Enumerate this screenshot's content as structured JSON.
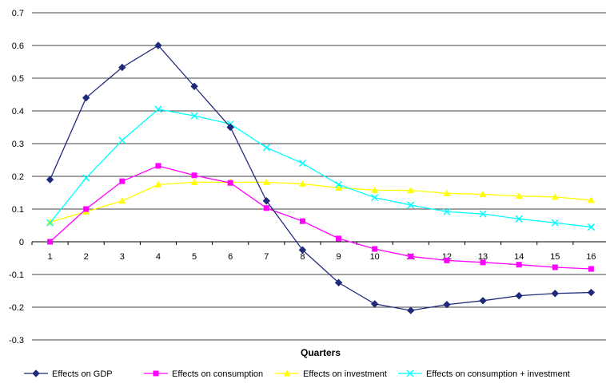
{
  "chart_data": {
    "type": "line",
    "title": "",
    "xlabel": "Quarters",
    "ylabel": "",
    "x": [
      1,
      2,
      3,
      4,
      5,
      6,
      7,
      8,
      9,
      10,
      11,
      12,
      13,
      14,
      15,
      16
    ],
    "ylim": [
      -0.3,
      0.7
    ],
    "yticks": [
      "0.7",
      "0.6",
      "0.5",
      "0.4",
      "0.3",
      "0.2",
      "0.1",
      "0",
      "-0.1",
      "-0.2",
      "-0.3"
    ],
    "grid": "horizontal",
    "legend_position": "bottom",
    "series": [
      {
        "name": "Effects on GDP",
        "color": "#1f2a7a",
        "marker": "diamond",
        "values": [
          0.19,
          0.44,
          0.533,
          0.6,
          0.475,
          0.35,
          0.125,
          -0.025,
          -0.125,
          -0.19,
          -0.21,
          -0.192,
          -0.18,
          -0.165,
          -0.158,
          -0.155
        ]
      },
      {
        "name": "Effects on consumption",
        "color": "#ff00ff",
        "marker": "square",
        "values": [
          0.0,
          0.1,
          0.185,
          0.232,
          0.203,
          0.18,
          0.103,
          0.063,
          0.01,
          -0.022,
          -0.045,
          -0.057,
          -0.063,
          -0.07,
          -0.078,
          -0.083
        ]
      },
      {
        "name": "Effects on investment",
        "color": "#ffff00",
        "marker": "triangle",
        "values": [
          0.06,
          0.092,
          0.125,
          0.175,
          0.182,
          0.182,
          0.182,
          0.177,
          0.165,
          0.158,
          0.157,
          0.148,
          0.145,
          0.14,
          0.137,
          0.127
        ]
      },
      {
        "name": "Effects on consumption + investment",
        "color": "#00ffff",
        "marker": "x",
        "values": [
          0.058,
          0.195,
          0.31,
          0.405,
          0.385,
          0.36,
          0.288,
          0.24,
          0.175,
          0.135,
          0.112,
          0.092,
          0.085,
          0.07,
          0.058,
          0.045
        ]
      }
    ]
  }
}
